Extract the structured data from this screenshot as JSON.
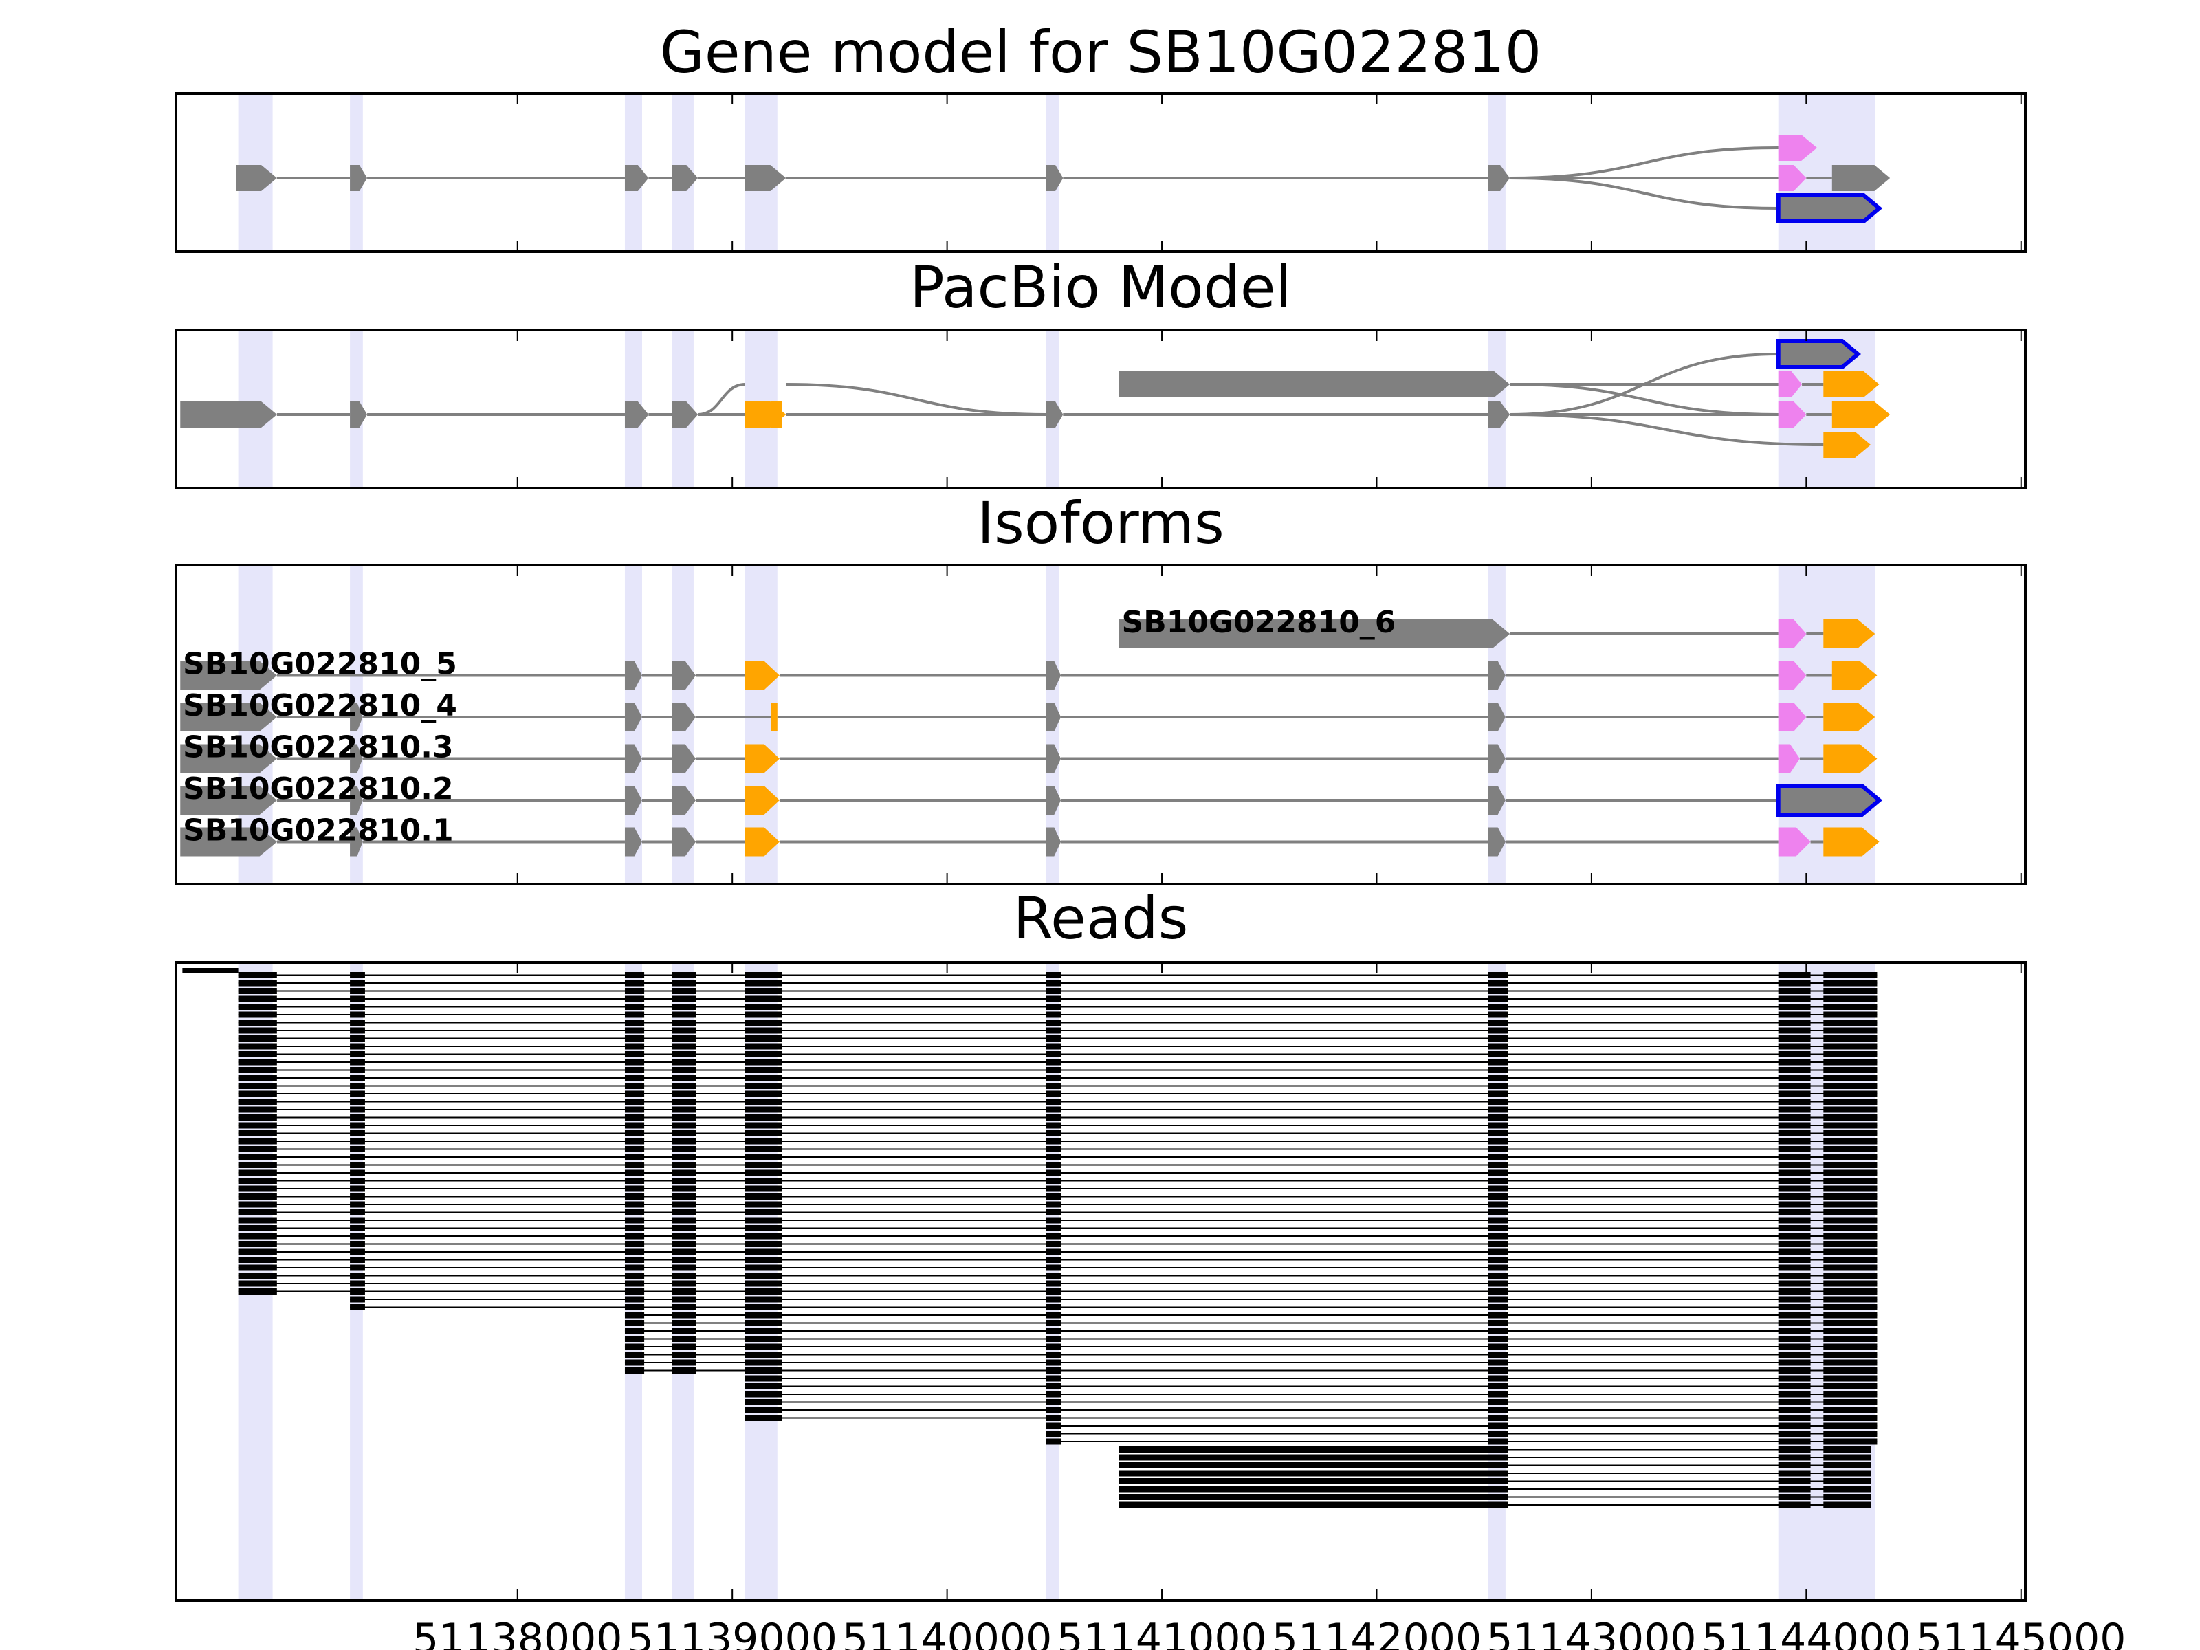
{
  "chart_data": {
    "type": "gene-model",
    "x_range": [
      51136410,
      51145020
    ],
    "x_ticks": [
      51138000,
      51139000,
      51140000,
      51141000,
      51142000,
      51143000,
      51144000,
      51145000
    ],
    "x_tick_labels": [
      "51138000",
      "51139000",
      "51140000",
      "51141000",
      "51142000",
      "51143000",
      "51144000",
      "51145000"
    ],
    "colors": {
      "exon": "#808080",
      "utr5": "#ee82ee",
      "utr3": "#ffa500",
      "highlight_outline": "#0000ee",
      "region": "#e6e6fa",
      "read": "#000000",
      "intron_line": "#808080"
    },
    "exon_regions": [
      [
        51136700,
        51136860
      ],
      [
        51137220,
        51137280
      ],
      [
        51138500,
        51138580
      ],
      [
        51138720,
        51138820
      ],
      [
        51139060,
        51139210
      ],
      [
        51140460,
        51140520
      ],
      [
        51142520,
        51142600
      ],
      [
        51143870,
        51144320
      ]
    ],
    "panels": [
      {
        "title": "Gene model for SB10G022810",
        "kind": "gene",
        "tracks": [
          {
            "level": 1,
            "exons": [
              {
                "s": 51136690,
                "e": 51136880,
                "c": "exon"
              },
              {
                "s": 51137220,
                "e": 51137300,
                "c": "exon"
              },
              {
                "s": 51138500,
                "e": 51138610,
                "c": "exon"
              },
              {
                "s": 51138720,
                "e": 51138840,
                "c": "exon"
              },
              {
                "s": 51139060,
                "e": 51139250,
                "c": "exon"
              },
              {
                "s": 51140460,
                "e": 51140540,
                "c": "exon"
              },
              {
                "s": 51142520,
                "e": 51142620,
                "c": "exon"
              },
              {
                "s": 51143870,
                "e": 51144000,
                "c": "utr5"
              },
              {
                "s": 51144120,
                "e": 51144390,
                "c": "exon"
              }
            ]
          },
          {
            "level": 0,
            "exons": [
              {
                "s": 51143870,
                "e": 51144050,
                "c": "utr5"
              }
            ]
          },
          {
            "level": 2,
            "exons": [
              {
                "s": 51143870,
                "e": 51144340,
                "c": "exon",
                "outline": true
              }
            ]
          }
        ]
      },
      {
        "title": "PacBio Model",
        "kind": "gene",
        "tracks": [
          {
            "level": 1,
            "exons": [
              {
                "s": 51136430,
                "e": 51136880,
                "c": "exon"
              },
              {
                "s": 51137220,
                "e": 51137300,
                "c": "exon"
              },
              {
                "s": 51138500,
                "e": 51138610,
                "c": "exon"
              },
              {
                "s": 51138720,
                "e": 51138840,
                "c": "exon"
              },
              {
                "s": 51139060,
                "e": 51139250,
                "c": "utr3"
              },
              {
                "s": 51140460,
                "e": 51140540,
                "c": "exon"
              },
              {
                "s": 51142520,
                "e": 51142620,
                "c": "exon"
              },
              {
                "s": 51143870,
                "e": 51144000,
                "c": "utr5"
              },
              {
                "s": 51144120,
                "e": 51144390,
                "c": "utr3"
              }
            ]
          },
          {
            "level": 1,
            "exons": [
              {
                "s": 51139180,
                "e": 51139230,
                "c": "utr3",
                "flat": true
              }
            ]
          },
          {
            "level": 0,
            "exons": [
              {
                "s": 51140800,
                "e": 51142620,
                "c": "exon"
              },
              {
                "s": 51143870,
                "e": 51143980,
                "c": "utr5"
              },
              {
                "s": 51144080,
                "e": 51144340,
                "c": "utr3"
              }
            ]
          },
          {
            "level": -1,
            "exons": [
              {
                "s": 51143870,
                "e": 51144240,
                "c": "exon",
                "outline": true
              }
            ]
          },
          {
            "level": 2,
            "exons": [
              {
                "s": 51144080,
                "e": 51144300,
                "c": "utr3"
              }
            ]
          }
        ]
      },
      {
        "title": "Isoforms",
        "kind": "isoforms",
        "isoforms": [
          {
            "label": "SB10G022810_6",
            "exons": [
              {
                "s": 51140800,
                "e": 51142620,
                "c": "exon"
              },
              {
                "s": 51143870,
                "e": 51144000,
                "c": "utr5"
              },
              {
                "s": 51144080,
                "e": 51144320,
                "c": "utr3"
              }
            ]
          },
          {
            "label": "SB10G022810_5",
            "exons": [
              {
                "s": 51136430,
                "e": 51136880,
                "c": "exon"
              },
              {
                "s": 51138500,
                "e": 51138580,
                "c": "exon"
              },
              {
                "s": 51138720,
                "e": 51138830,
                "c": "exon"
              },
              {
                "s": 51139060,
                "e": 51139220,
                "c": "utr3"
              },
              {
                "s": 51140460,
                "e": 51140530,
                "c": "exon"
              },
              {
                "s": 51142520,
                "e": 51142600,
                "c": "exon"
              },
              {
                "s": 51143870,
                "e": 51144000,
                "c": "utr5"
              },
              {
                "s": 51144120,
                "e": 51144330,
                "c": "utr3"
              }
            ]
          },
          {
            "label": "SB10G022810_4",
            "exons": [
              {
                "s": 51136430,
                "e": 51136880,
                "c": "exon"
              },
              {
                "s": 51137220,
                "e": 51137280,
                "c": "exon"
              },
              {
                "s": 51138500,
                "e": 51138580,
                "c": "exon"
              },
              {
                "s": 51138720,
                "e": 51138830,
                "c": "exon"
              },
              {
                "s": 51139180,
                "e": 51139210,
                "c": "utr3",
                "flat": true
              },
              {
                "s": 51140460,
                "e": 51140530,
                "c": "exon"
              },
              {
                "s": 51142520,
                "e": 51142600,
                "c": "exon"
              },
              {
                "s": 51143870,
                "e": 51144000,
                "c": "utr5"
              },
              {
                "s": 51144080,
                "e": 51144320,
                "c": "utr3"
              }
            ]
          },
          {
            "label": "SB10G022810.3",
            "exons": [
              {
                "s": 51136430,
                "e": 51136880,
                "c": "exon"
              },
              {
                "s": 51137220,
                "e": 51137280,
                "c": "exon"
              },
              {
                "s": 51138500,
                "e": 51138580,
                "c": "exon"
              },
              {
                "s": 51138720,
                "e": 51138830,
                "c": "exon"
              },
              {
                "s": 51139060,
                "e": 51139220,
                "c": "utr3"
              },
              {
                "s": 51140460,
                "e": 51140530,
                "c": "exon"
              },
              {
                "s": 51142520,
                "e": 51142600,
                "c": "exon"
              },
              {
                "s": 51143870,
                "e": 51143970,
                "c": "utr5"
              },
              {
                "s": 51144080,
                "e": 51144330,
                "c": "utr3"
              }
            ]
          },
          {
            "label": "SB10G022810.2",
            "exons": [
              {
                "s": 51136430,
                "e": 51136880,
                "c": "exon"
              },
              {
                "s": 51137220,
                "e": 51137280,
                "c": "exon"
              },
              {
                "s": 51138500,
                "e": 51138580,
                "c": "exon"
              },
              {
                "s": 51138720,
                "e": 51138830,
                "c": "exon"
              },
              {
                "s": 51139060,
                "e": 51139220,
                "c": "utr3"
              },
              {
                "s": 51140460,
                "e": 51140530,
                "c": "exon"
              },
              {
                "s": 51142520,
                "e": 51142600,
                "c": "exon"
              },
              {
                "s": 51143870,
                "e": 51144340,
                "c": "exon",
                "outline": true
              }
            ]
          },
          {
            "label": "SB10G022810.1",
            "exons": [
              {
                "s": 51136430,
                "e": 51136880,
                "c": "exon"
              },
              {
                "s": 51137220,
                "e": 51137280,
                "c": "exon"
              },
              {
                "s": 51138500,
                "e": 51138580,
                "c": "exon"
              },
              {
                "s": 51138720,
                "e": 51138830,
                "c": "exon"
              },
              {
                "s": 51139060,
                "e": 51139220,
                "c": "utr3"
              },
              {
                "s": 51140460,
                "e": 51140530,
                "c": "exon"
              },
              {
                "s": 51142520,
                "e": 51142600,
                "c": "exon"
              },
              {
                "s": 51143870,
                "e": 51144020,
                "c": "utr5"
              },
              {
                "s": 51144080,
                "e": 51144340,
                "c": "utr3"
              }
            ]
          }
        ]
      },
      {
        "title": "Reads",
        "kind": "reads",
        "read_groups": [
          {
            "count": 41,
            "exons": [
              [
                51136700,
                51136880
              ],
              [
                51137220,
                51137290
              ],
              [
                51138500,
                51138590
              ],
              [
                51138720,
                51138830
              ],
              [
                51139060,
                51139230
              ],
              [
                51140460,
                51140530
              ],
              [
                51142520,
                51142610
              ],
              [
                51143870,
                51144020
              ],
              [
                51144080,
                51144330
              ]
            ]
          },
          {
            "count": 2,
            "exons": [
              [
                51137220,
                51137290
              ],
              [
                51138500,
                51138590
              ],
              [
                51138720,
                51138830
              ],
              [
                51139060,
                51139230
              ],
              [
                51140460,
                51140530
              ],
              [
                51142520,
                51142610
              ],
              [
                51143870,
                51144020
              ],
              [
                51144080,
                51144330
              ]
            ]
          },
          {
            "count": 8,
            "exons": [
              [
                51138500,
                51138590
              ],
              [
                51138720,
                51138830
              ],
              [
                51139060,
                51139230
              ],
              [
                51140460,
                51140530
              ],
              [
                51142520,
                51142610
              ],
              [
                51143870,
                51144020
              ],
              [
                51144080,
                51144330
              ]
            ]
          },
          {
            "count": 6,
            "exons": [
              [
                51139060,
                51139230
              ],
              [
                51140460,
                51140530
              ],
              [
                51142520,
                51142610
              ],
              [
                51143870,
                51144020
              ],
              [
                51144080,
                51144330
              ]
            ]
          },
          {
            "count": 3,
            "exons": [
              [
                51140460,
                51140530
              ],
              [
                51142520,
                51142610
              ],
              [
                51143870,
                51144020
              ],
              [
                51144080,
                51144330
              ]
            ]
          },
          {
            "count": 8,
            "exons": [
              [
                51140800,
                51142610
              ],
              [
                51143870,
                51144020
              ],
              [
                51144080,
                51144300
              ]
            ]
          }
        ]
      }
    ]
  }
}
